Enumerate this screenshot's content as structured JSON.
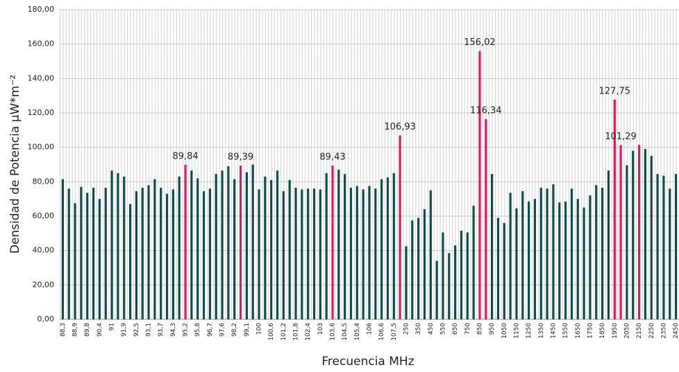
{
  "chart_data": {
    "type": "bar",
    "y_label": "Densidad de Potencia   µW*m⁻²",
    "x_label": "Frecuencia MHz",
    "categories": [
      "88,3",
      null,
      "88,9",
      null,
      "89,8",
      null,
      "90,4",
      null,
      "91",
      null,
      "91,9",
      null,
      "92,5",
      null,
      "93,1",
      null,
      "93,7",
      null,
      "94,3",
      null,
      "95,2",
      null,
      "95,8",
      null,
      "96,7",
      null,
      "97,6",
      null,
      "98,2",
      null,
      "99,1",
      null,
      "100",
      null,
      "100,6",
      null,
      "101,2",
      null,
      "101,8",
      null,
      "102,4",
      null,
      "103",
      null,
      "103,6",
      null,
      "104,5",
      null,
      "105,4",
      null,
      "106",
      null,
      "106,6",
      null,
      "107,5",
      null,
      "250",
      null,
      "350",
      null,
      "450",
      null,
      "550",
      null,
      "650",
      null,
      "750",
      null,
      "850",
      null,
      "950",
      null,
      "1050",
      null,
      "1150",
      null,
      "1250",
      null,
      "1350",
      null,
      "1450",
      null,
      "1550",
      null,
      "1650",
      null,
      "1750",
      null,
      "1850",
      null,
      "1950",
      null,
      "2050",
      null,
      "2150",
      null,
      "2250",
      null,
      "2350",
      null,
      "2450"
    ],
    "values": [
      81.5,
      76,
      67.5,
      77,
      73.5,
      76.5,
      70,
      76.5,
      86.5,
      85,
      83,
      67,
      74.5,
      76.5,
      78,
      81.5,
      76.5,
      73,
      75.5,
      83,
      89.84,
      86.5,
      82,
      74.5,
      76,
      84.5,
      86.5,
      89,
      81.5,
      89.39,
      85.5,
      90,
      75.5,
      83,
      81,
      86.5,
      74.5,
      81,
      76.5,
      75.5,
      76,
      76,
      75.5,
      85,
      89.43,
      87,
      84.5,
      76.5,
      77.5,
      75.5,
      77.5,
      76,
      81.5,
      82.5,
      85,
      106.93,
      42.5,
      57.5,
      59,
      64,
      75,
      34,
      50.5,
      38.5,
      43,
      51.5,
      50.5,
      66,
      156.02,
      116.34,
      84.5,
      59,
      56,
      73.5,
      64.5,
      74.5,
      68.5,
      70,
      76.5,
      76,
      78.5,
      68,
      68.5,
      76,
      70,
      65,
      72,
      78,
      76.5,
      86.5,
      127.75,
      101.29,
      89.5,
      98,
      101.5,
      99,
      95,
      84.5,
      83.5,
      76,
      84.5
    ],
    "value_labels": [
      null,
      null,
      null,
      null,
      null,
      null,
      null,
      null,
      null,
      null,
      null,
      null,
      null,
      null,
      null,
      null,
      null,
      null,
      null,
      null,
      "89,84",
      null,
      null,
      null,
      null,
      null,
      null,
      null,
      null,
      "89,39",
      null,
      null,
      null,
      null,
      null,
      null,
      null,
      null,
      null,
      null,
      null,
      null,
      null,
      null,
      "89,43",
      null,
      null,
      null,
      null,
      null,
      null,
      null,
      null,
      null,
      null,
      "106,93",
      null,
      null,
      null,
      null,
      null,
      null,
      null,
      null,
      null,
      null,
      null,
      null,
      "156,02",
      "116,34",
      null,
      null,
      null,
      null,
      null,
      null,
      null,
      null,
      null,
      null,
      null,
      null,
      null,
      null,
      null,
      null,
      null,
      null,
      null,
      null,
      "127,75",
      "101,29",
      null,
      null,
      null,
      null,
      null,
      null,
      null,
      null,
      null
    ],
    "colors": [
      "#0e4b4b",
      "#0e4b4b",
      "#0e4b4b",
      "#0e4b4b",
      "#0e4b4b",
      "#0e4b4b",
      "#0e4b4b",
      "#0e4b4b",
      "#0e4b4b",
      "#0e4b4b",
      "#0e4b4b",
      "#0e4b4b",
      "#0e4b4b",
      "#0e4b4b",
      "#0e4b4b",
      "#0e4b4b",
      "#0e4b4b",
      "#0e4b4b",
      "#0e4b4b",
      "#0e4b4b",
      "#e2185b",
      "#0e4b4b",
      "#0e4b4b",
      "#0e4b4b",
      "#0e4b4b",
      "#0e4b4b",
      "#0e4b4b",
      "#0e4b4b",
      "#0e4b4b",
      "#e2185b",
      "#0e4b4b",
      "#0e4b4b",
      "#0e4b4b",
      "#0e4b4b",
      "#0e4b4b",
      "#0e4b4b",
      "#0e4b4b",
      "#0e4b4b",
      "#0e4b4b",
      "#0e4b4b",
      "#0e4b4b",
      "#0e4b4b",
      "#0e4b4b",
      "#0e4b4b",
      "#e2185b",
      "#0e4b4b",
      "#0e4b4b",
      "#0e4b4b",
      "#0e4b4b",
      "#0e4b4b",
      "#0e4b4b",
      "#0e4b4b",
      "#0e4b4b",
      "#0e4b4b",
      "#0e4b4b",
      "#e2185b",
      "#0e4b4b",
      "#0e4b4b",
      "#0e4b4b",
      "#0e4b4b",
      "#0e4b4b",
      "#0e4b4b",
      "#0e4b4b",
      "#0e4b4b",
      "#0e4b4b",
      "#0e4b4b",
      "#0e4b4b",
      "#0e4b4b",
      "#e2185b",
      "#e2185b",
      "#0e4b4b",
      "#0e4b4b",
      "#0e4b4b",
      "#0e4b4b",
      "#0e4b4b",
      "#0e4b4b",
      "#0e4b4b",
      "#0e4b4b",
      "#0e4b4b",
      "#0e4b4b",
      "#0e4b4b",
      "#0e4b4b",
      "#0e4b4b",
      "#0e4b4b",
      "#0e4b4b",
      "#0e4b4b",
      "#0e4b4b",
      "#0e4b4b",
      "#0e4b4b",
      "#0e4b4b",
      "#e2185b",
      "#e2185b",
      "#0e4b4b",
      "#0e4b4b",
      "#e2185b",
      "#0e4b4b",
      "#0e4b4b",
      "#0e4b4b",
      "#0e4b4b",
      "#0e4b4b",
      "#0e4b4b"
    ],
    "ylim": [
      0,
      180
    ],
    "yticks": [
      {
        "value": 0,
        "label": "0,00"
      },
      {
        "value": 20,
        "label": "20,00"
      },
      {
        "value": 40,
        "label": "40,00"
      },
      {
        "value": 60,
        "label": "60,00"
      },
      {
        "value": 80,
        "label": "80,00"
      },
      {
        "value": 100,
        "label": "100,00"
      },
      {
        "value": 120,
        "label": "120,00"
      },
      {
        "value": 140,
        "label": "140,00"
      },
      {
        "value": 160,
        "label": "160,00"
      },
      {
        "value": 180,
        "label": "180,00"
      }
    ],
    "grid": true
  }
}
